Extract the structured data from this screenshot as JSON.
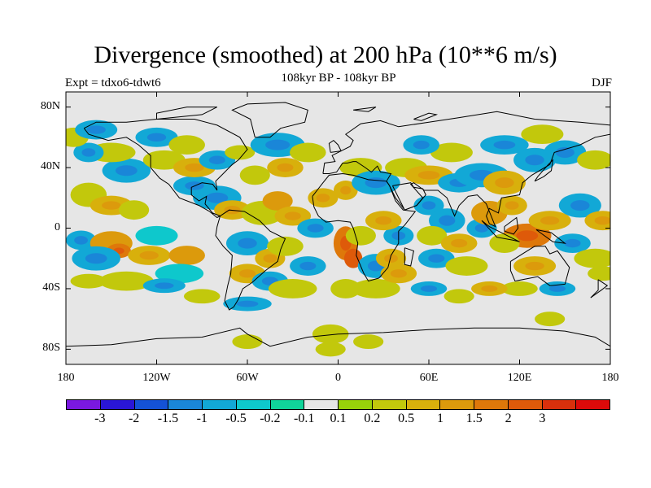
{
  "title": "Divergence (smoothed) at 200 hPa (10**6 m/s)",
  "subtitle": "108kyr BP - 108kyr BP",
  "experiment_label": "Expt = tdxo6-tdwt6",
  "season_label": "DJF",
  "map": {
    "projection": "cylindrical equidistant",
    "lon_range": [
      -180,
      180
    ],
    "lat_range": [
      -90,
      90
    ],
    "background_color": "#e6e6e6",
    "coastline_color": "#000000"
  },
  "axes": {
    "lat_ticks": [
      {
        "value": 80,
        "label": "80N"
      },
      {
        "value": 40,
        "label": "40N"
      },
      {
        "value": 0,
        "label": "0"
      },
      {
        "value": -40,
        "label": "40S"
      },
      {
        "value": -80,
        "label": "80S"
      }
    ],
    "lon_ticks": [
      {
        "value": -180,
        "label": "180"
      },
      {
        "value": -120,
        "label": "120W"
      },
      {
        "value": -60,
        "label": "60W"
      },
      {
        "value": 0,
        "label": "0"
      },
      {
        "value": 60,
        "label": "60E"
      },
      {
        "value": 120,
        "label": "120E"
      },
      {
        "value": 180,
        "label": "180"
      }
    ]
  },
  "colorbar": {
    "colors": [
      "#7a18e0",
      "#2a16d6",
      "#1452d6",
      "#1a86d8",
      "#12a8d6",
      "#0ec8cc",
      "#10d49a",
      "#e6e6e6",
      "#98d20a",
      "#c2c80c",
      "#d8b00c",
      "#dc9a0c",
      "#de780a",
      "#de5a0a",
      "#d8300c",
      "#dc0a0a"
    ],
    "labels": [
      "-3",
      "-2",
      "-1.5",
      "-1",
      "-0.5",
      "-0.2",
      "-0.1",
      "0.1",
      "0.2",
      "0.5",
      "1",
      "1.5",
      "2",
      "3"
    ]
  }
}
